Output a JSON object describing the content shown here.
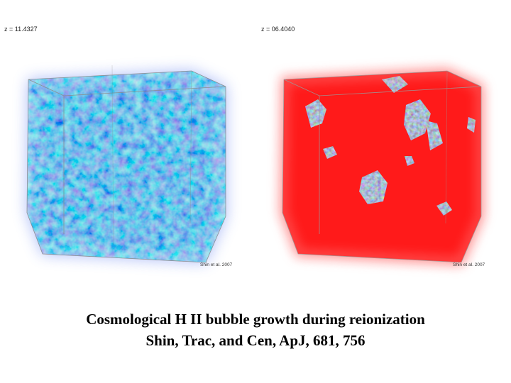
{
  "panels": [
    {
      "z_label": "z = 11.4327",
      "credit": "Shin et al. 2007",
      "dominant_color": "#2f4fe0",
      "fill": "blue-green-noise"
    },
    {
      "z_label": "z = 06.4040",
      "credit": "Shin et al. 2007",
      "dominant_color": "#ff1a1a",
      "fill": "red-with-neutral-islands"
    }
  ],
  "caption": {
    "line1": "Cosmological H II bubble growth during reionization",
    "line2": "Shin, Trac, and Cen, ApJ, 681, 756"
  }
}
